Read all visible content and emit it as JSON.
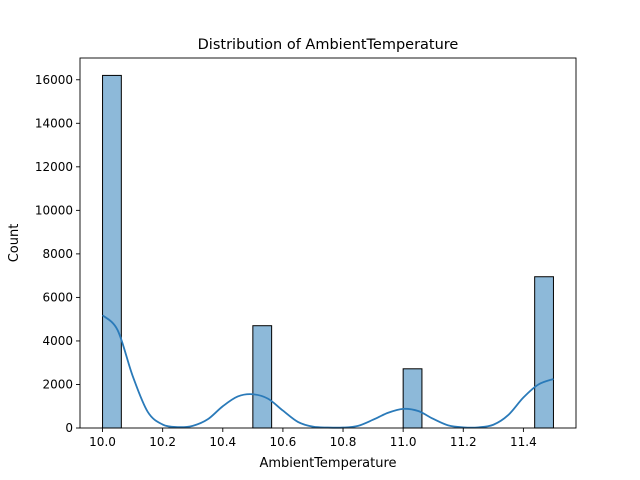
{
  "chart_data": {
    "type": "bar",
    "subtype": "histogram_with_kde",
    "title": "Distribution of AmbientTemperature",
    "xlabel": "AmbientTemperature",
    "ylabel": "Count",
    "xlim": [
      9.925,
      11.575
    ],
    "ylim": [
      0,
      17000
    ],
    "xticks": [
      10.0,
      10.2,
      10.4,
      10.6,
      10.8,
      11.0,
      11.2,
      11.4
    ],
    "xtick_labels": [
      "10.0",
      "10.2",
      "10.4",
      "10.6",
      "10.8",
      "11.0",
      "11.2",
      "11.4"
    ],
    "yticks": [
      0,
      2000,
      4000,
      6000,
      8000,
      10000,
      12000,
      14000,
      16000
    ],
    "ytick_labels": [
      "0",
      "2000",
      "4000",
      "6000",
      "8000",
      "10000",
      "12000",
      "14000",
      "16000"
    ],
    "bin_width": 0.0625,
    "bars": [
      {
        "x_start": 10.0,
        "x_end": 10.0625,
        "count": 16200
      },
      {
        "x_start": 10.5,
        "x_end": 10.5625,
        "count": 4700
      },
      {
        "x_start": 11.0,
        "x_end": 11.0625,
        "count": 2720
      },
      {
        "x_start": 11.4375,
        "x_end": 11.5,
        "count": 6950
      }
    ],
    "kde": {
      "x": [
        10.0,
        10.05,
        10.1,
        10.15,
        10.2,
        10.25,
        10.3,
        10.35,
        10.4,
        10.45,
        10.5,
        10.55,
        10.6,
        10.65,
        10.7,
        10.75,
        10.8,
        10.85,
        10.9,
        10.95,
        11.0,
        11.05,
        11.1,
        11.15,
        11.2,
        11.25,
        11.3,
        11.35,
        11.4,
        11.45,
        11.5
      ],
      "y": [
        5180,
        4500,
        2400,
        750,
        160,
        40,
        100,
        400,
        1000,
        1450,
        1550,
        1350,
        800,
        280,
        60,
        20,
        20,
        100,
        380,
        700,
        880,
        780,
        420,
        120,
        30,
        30,
        150,
        600,
        1400,
        2000,
        2250
      ]
    },
    "grid": false,
    "legend": false,
    "colors": {
      "bar_fill": "#8db9d9",
      "bar_edge": "#000000",
      "kde_line": "#2a7ab9"
    }
  }
}
